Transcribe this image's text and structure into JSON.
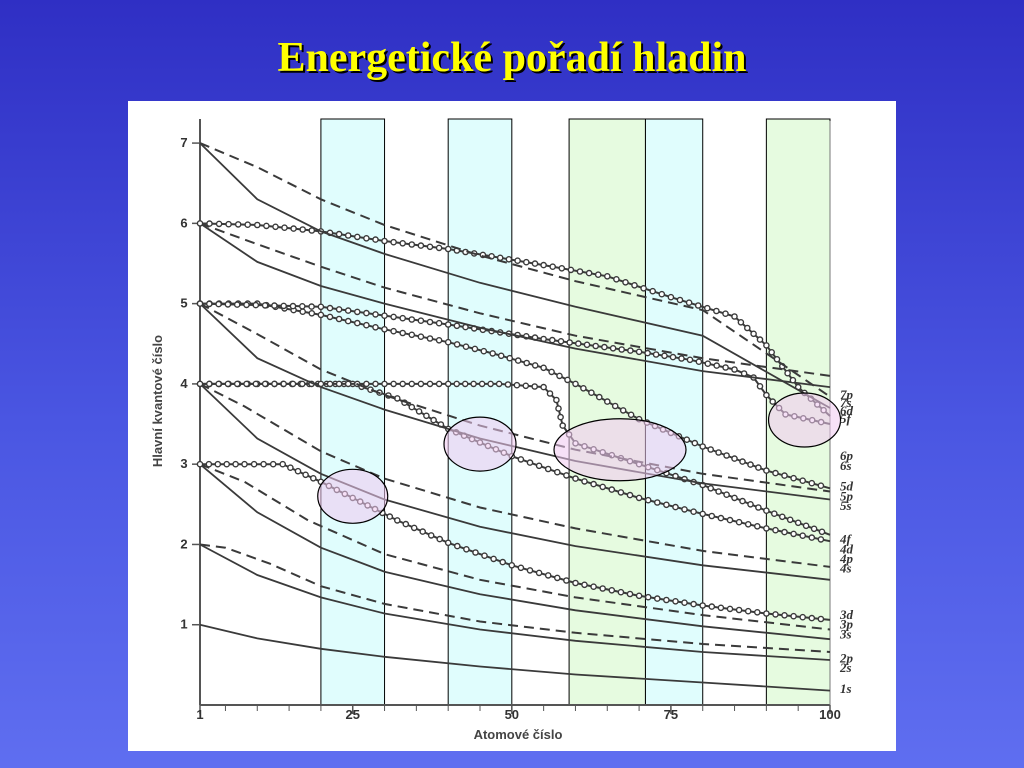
{
  "slide": {
    "title": "Energetické pořadí hladin",
    "colors": {
      "background": "#3a40d8",
      "title": "#ffff00"
    }
  },
  "chart_data": {
    "type": "line",
    "xlabel": "Atomové číslo",
    "ylabel": "Hlavní kvantové číslo",
    "xlim": [
      1,
      100
    ],
    "ylim": [
      0,
      7.3
    ],
    "x_ticks": [
      1,
      25,
      50,
      75,
      100
    ],
    "x_tick_labels": [
      "1",
      "25",
      "50",
      "75",
      "100"
    ],
    "y_ticks": [
      1,
      2,
      3,
      4,
      5,
      6,
      7
    ],
    "y_tick_labels": [
      "1",
      "2",
      "3",
      "4",
      "5",
      "6",
      "7"
    ],
    "grid": false,
    "highlight_bands": [
      {
        "x": [
          20,
          30
        ],
        "color": "#e0fdfd"
      },
      {
        "x": [
          40,
          50
        ],
        "color": "#e0fdfd"
      },
      {
        "x": [
          59,
          71
        ],
        "color": "#e6fbe0"
      },
      {
        "x": [
          71,
          80
        ],
        "color": "#e0fdfd"
      },
      {
        "x": [
          90,
          100
        ],
        "color": "#e6fbe0"
      }
    ],
    "highlight_ellipses": [
      {
        "cx": 25,
        "cy": 2.6,
        "color": "#f0c8f0"
      },
      {
        "cx": 45,
        "cy": 3.25,
        "color": "#f0c8f0"
      },
      {
        "cx": 67,
        "cy": 3.18,
        "color": "#f0c8f0"
      },
      {
        "cx": 96,
        "cy": 3.55,
        "color": "#f0c8f0"
      }
    ],
    "series": [
      {
        "name": "1s",
        "style": "solid",
        "x": [
          1,
          10,
          20,
          30,
          45,
          60,
          80,
          100
        ],
        "y": [
          1.0,
          0.83,
          0.7,
          0.6,
          0.48,
          0.38,
          0.28,
          0.18
        ]
      },
      {
        "name": "2s",
        "style": "solid",
        "x": [
          1,
          10,
          20,
          30,
          45,
          60,
          80,
          100
        ],
        "y": [
          2.0,
          1.62,
          1.34,
          1.14,
          0.94,
          0.8,
          0.66,
          0.56
        ]
      },
      {
        "name": "2p",
        "style": "dashed",
        "x": [
          1,
          5,
          12,
          20,
          30,
          45,
          60,
          80,
          100
        ],
        "y": [
          2.0,
          1.96,
          1.76,
          1.48,
          1.26,
          1.04,
          0.9,
          0.76,
          0.66
        ]
      },
      {
        "name": "3s",
        "style": "solid",
        "x": [
          1,
          10,
          20,
          30,
          45,
          60,
          80,
          100
        ],
        "y": [
          3.0,
          2.4,
          1.96,
          1.66,
          1.38,
          1.18,
          0.98,
          0.82
        ]
      },
      {
        "name": "3p",
        "style": "dashed",
        "x": [
          1,
          8,
          18,
          30,
          45,
          60,
          80,
          100
        ],
        "y": [
          3.0,
          2.78,
          2.3,
          1.88,
          1.56,
          1.34,
          1.12,
          0.94
        ]
      },
      {
        "name": "3d",
        "style": "dotted",
        "x": [
          1,
          8,
          14,
          20,
          25,
          32,
          40,
          50,
          60,
          70,
          80,
          90,
          100
        ],
        "y": [
          3.0,
          3.0,
          3.0,
          2.78,
          2.58,
          2.3,
          2.02,
          1.74,
          1.52,
          1.36,
          1.24,
          1.14,
          1.06
        ]
      },
      {
        "name": "4s",
        "style": "solid",
        "x": [
          1,
          10,
          20,
          30,
          45,
          60,
          80,
          100
        ],
        "y": [
          4.0,
          3.32,
          2.88,
          2.56,
          2.22,
          1.98,
          1.74,
          1.56
        ]
      },
      {
        "name": "4p",
        "style": "dashed",
        "x": [
          1,
          8,
          20,
          30,
          45,
          60,
          80,
          100
        ],
        "y": [
          4.0,
          3.72,
          3.16,
          2.82,
          2.46,
          2.2,
          1.92,
          1.72
        ]
      },
      {
        "name": "4d",
        "style": "dotted",
        "x": [
          1,
          10,
          25,
          32,
          40,
          50,
          60,
          70,
          80,
          90,
          100
        ],
        "y": [
          4.0,
          4.0,
          4.0,
          3.82,
          3.44,
          3.1,
          2.82,
          2.58,
          2.38,
          2.2,
          2.04
        ]
      },
      {
        "name": "4f",
        "style": "dotted",
        "x": [
          1,
          20,
          40,
          48,
          55,
          57,
          58,
          60,
          70,
          80,
          90,
          100
        ],
        "y": [
          4.0,
          4.0,
          4.0,
          4.0,
          3.96,
          3.8,
          3.48,
          3.26,
          3.0,
          2.74,
          2.42,
          2.12
        ]
      },
      {
        "name": "5s",
        "style": "solid",
        "x": [
          1,
          10,
          20,
          30,
          45,
          60,
          80,
          100
        ],
        "y": [
          5.0,
          4.32,
          3.96,
          3.68,
          3.32,
          3.04,
          2.76,
          2.56
        ]
      },
      {
        "name": "5p",
        "style": "dashed",
        "x": [
          1,
          10,
          20,
          30,
          45,
          60,
          80,
          100
        ],
        "y": [
          5.0,
          4.62,
          4.18,
          3.86,
          3.48,
          3.18,
          2.88,
          2.66
        ]
      },
      {
        "name": "5d",
        "style": "dotted",
        "x": [
          1,
          10,
          20,
          30,
          40,
          47,
          55,
          60,
          70,
          80,
          90,
          100
        ],
        "y": [
          5.0,
          5.0,
          4.86,
          4.68,
          4.52,
          4.38,
          4.2,
          4.0,
          3.56,
          3.22,
          2.92,
          2.7
        ]
      },
      {
        "name": "5f",
        "style": "dotted",
        "x": [
          1,
          20,
          40,
          55,
          70,
          78,
          85,
          88,
          90,
          93,
          100
        ],
        "y": [
          5.0,
          4.96,
          4.74,
          4.56,
          4.4,
          4.3,
          4.18,
          4.08,
          3.86,
          3.62,
          3.5
        ]
      },
      {
        "name": "6s",
        "style": "solid",
        "x": [
          1,
          10,
          20,
          30,
          45,
          60,
          80,
          100
        ],
        "y": [
          6.0,
          5.52,
          5.22,
          5.0,
          4.7,
          4.44,
          4.16,
          3.96
        ]
      },
      {
        "name": "6p",
        "style": "dashed",
        "x": [
          1,
          10,
          20,
          30,
          45,
          60,
          80,
          100
        ],
        "y": [
          6.0,
          5.74,
          5.46,
          5.2,
          4.88,
          4.6,
          4.32,
          4.1
        ]
      },
      {
        "name": "6d",
        "style": "dotted",
        "x": [
          1,
          10,
          20,
          30,
          40,
          55,
          65,
          75,
          85,
          90,
          95,
          100
        ],
        "y": [
          6.0,
          5.98,
          5.9,
          5.78,
          5.68,
          5.48,
          5.34,
          5.08,
          4.84,
          4.48,
          3.96,
          3.6
        ]
      },
      {
        "name": "7s",
        "style": "solid",
        "x": [
          1,
          10,
          20,
          30,
          45,
          60,
          80,
          100
        ],
        "y": [
          7.0,
          6.3,
          5.9,
          5.62,
          5.26,
          4.96,
          4.6,
          3.7
        ]
      },
      {
        "name": "7p",
        "style": "dashed",
        "x": [
          1,
          10,
          20,
          30,
          45,
          60,
          80,
          100
        ],
        "y": [
          7.0,
          6.7,
          6.3,
          5.98,
          5.6,
          5.28,
          4.92,
          3.84
        ]
      }
    ],
    "orbital_labels": [
      {
        "text": "7p",
        "y": 3.86
      },
      {
        "text": "7s",
        "y": 3.76
      },
      {
        "text": "6d",
        "y": 3.66
      },
      {
        "text": "5f",
        "y": 3.56
      },
      {
        "text": "6p",
        "y": 3.1
      },
      {
        "text": "6s",
        "y": 2.98
      },
      {
        "text": "5d",
        "y": 2.72
      },
      {
        "text": "5p",
        "y": 2.6
      },
      {
        "text": "5s",
        "y": 2.48
      },
      {
        "text": "4f",
        "y": 2.06
      },
      {
        "text": "4d",
        "y": 1.94
      },
      {
        "text": "4p",
        "y": 1.82
      },
      {
        "text": "4s",
        "y": 1.7
      },
      {
        "text": "3d",
        "y": 1.12
      },
      {
        "text": "3p",
        "y": 1.0
      },
      {
        "text": "3s",
        "y": 0.88
      },
      {
        "text": "2p",
        "y": 0.58
      },
      {
        "text": "2s",
        "y": 0.46
      },
      {
        "text": "1s",
        "y": 0.2
      }
    ]
  }
}
